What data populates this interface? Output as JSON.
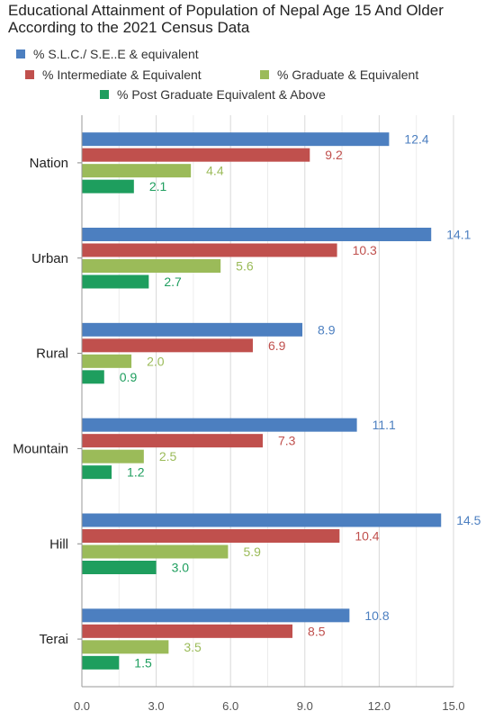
{
  "chart_data": {
    "type": "bar",
    "orientation": "horizontal",
    "title": "Educational Attainment of Population of Nepal Age 15 And Older According to the 2021 Census Data",
    "categories": [
      "Nation",
      "Urban",
      "Rural",
      "Mountain",
      "Hill",
      "Terai"
    ],
    "series": [
      {
        "name": "% S.L.C./  S.E..E & equivalent",
        "color": "#4c7fc0",
        "values": [
          12.4,
          14.1,
          8.9,
          11.1,
          14.5,
          10.8
        ]
      },
      {
        "name": "% Intermediate & Equivalent",
        "color": "#c0504d",
        "values": [
          9.2,
          10.3,
          6.9,
          7.3,
          10.4,
          8.5
        ]
      },
      {
        "name": "% Graduate & Equivalent",
        "color": "#9bbb59",
        "values": [
          4.4,
          5.6,
          2.0,
          2.5,
          5.9,
          3.5
        ]
      },
      {
        "name": "% Post Graduate Equivalent & Above",
        "color": "#1e9e5e",
        "values": [
          2.1,
          2.7,
          0.9,
          1.2,
          3.0,
          1.5
        ]
      }
    ],
    "x_ticks": [
      "0.0",
      "3.0",
      "6.0",
      "9.0",
      "12.0",
      "15.0"
    ],
    "xlim": [
      0,
      15
    ],
    "grid": true,
    "legend_position": "top"
  }
}
